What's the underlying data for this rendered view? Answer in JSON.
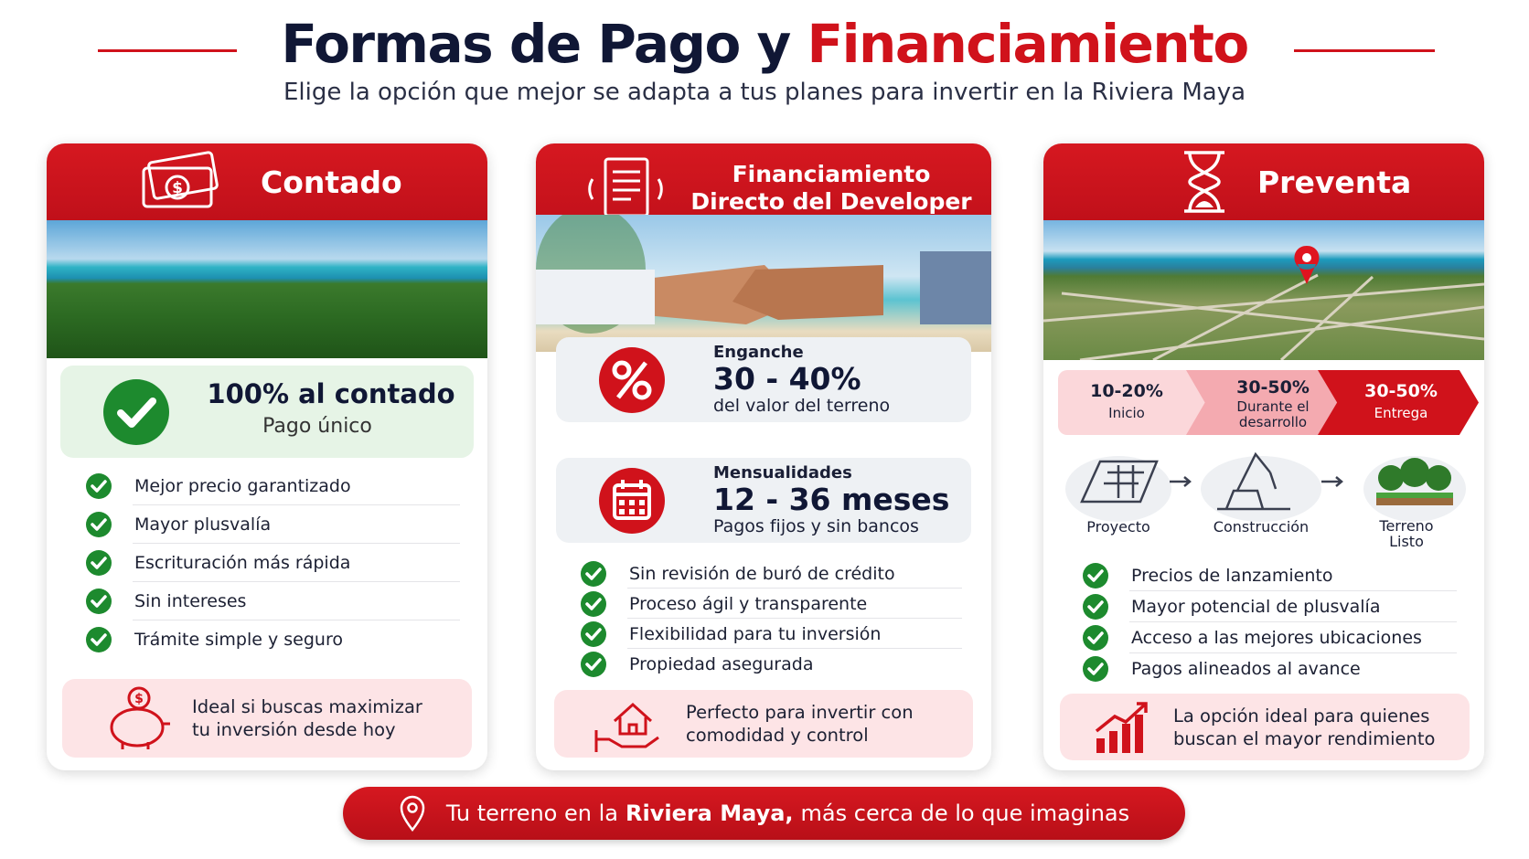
{
  "header": {
    "title_part1": "Formas de Pago",
    "title_connector": "y",
    "title_part2": "Financiamiento",
    "subtitle": "Elige la opción que mejor se adapta a tus planes para invertir en la Riviera Maya"
  },
  "cards": [
    {
      "title": "Contado",
      "highlight": {
        "title": "100% al contado",
        "subtitle": "Pago único"
      },
      "benefits": [
        "Mejor precio garantizado",
        "Mayor plusvalía",
        "Escrituración más rápida",
        "Sin intereses",
        "Trámite simple y seguro"
      ],
      "callout": "Ideal si buscas maximizar tu inversión desde hoy"
    },
    {
      "title": "Financiamiento Directo del Developer",
      "terms": [
        {
          "label": "Enganche",
          "value": "30 - 40%",
          "note": "del valor del terreno"
        },
        {
          "label": "Mensualidades",
          "value": "12 - 36 meses",
          "note": "Pagos fijos y sin bancos"
        }
      ],
      "benefits": [
        "Sin revisión de buró de crédito",
        "Proceso ágil y transparente",
        "Flexibilidad para tu inversión",
        "Propiedad asegurada"
      ],
      "callout": "Perfecto para invertir con comodidad y control"
    },
    {
      "title": "Preventa",
      "payment_stages": [
        {
          "percent": "10-20%",
          "label": "Inicio"
        },
        {
          "percent": "30-50%",
          "label": "Durante el desarrollo"
        },
        {
          "percent": "30-50%",
          "label": "Entrega"
        }
      ],
      "phases": [
        "Proyecto",
        "Construcción",
        "Terreno Listo"
      ],
      "benefits": [
        "Precios de lanzamiento",
        "Mayor potencial de plusvalía",
        "Acceso a las mejores ubicaciones",
        "Pagos alineados al avance"
      ],
      "callout": "La opción ideal para quienes buscan el mayor rendimiento"
    }
  ],
  "footer": {
    "text_before": "Tu terreno en la",
    "text_bold": "Riviera Maya,",
    "text_after": "más cerca de lo que imaginas"
  }
}
